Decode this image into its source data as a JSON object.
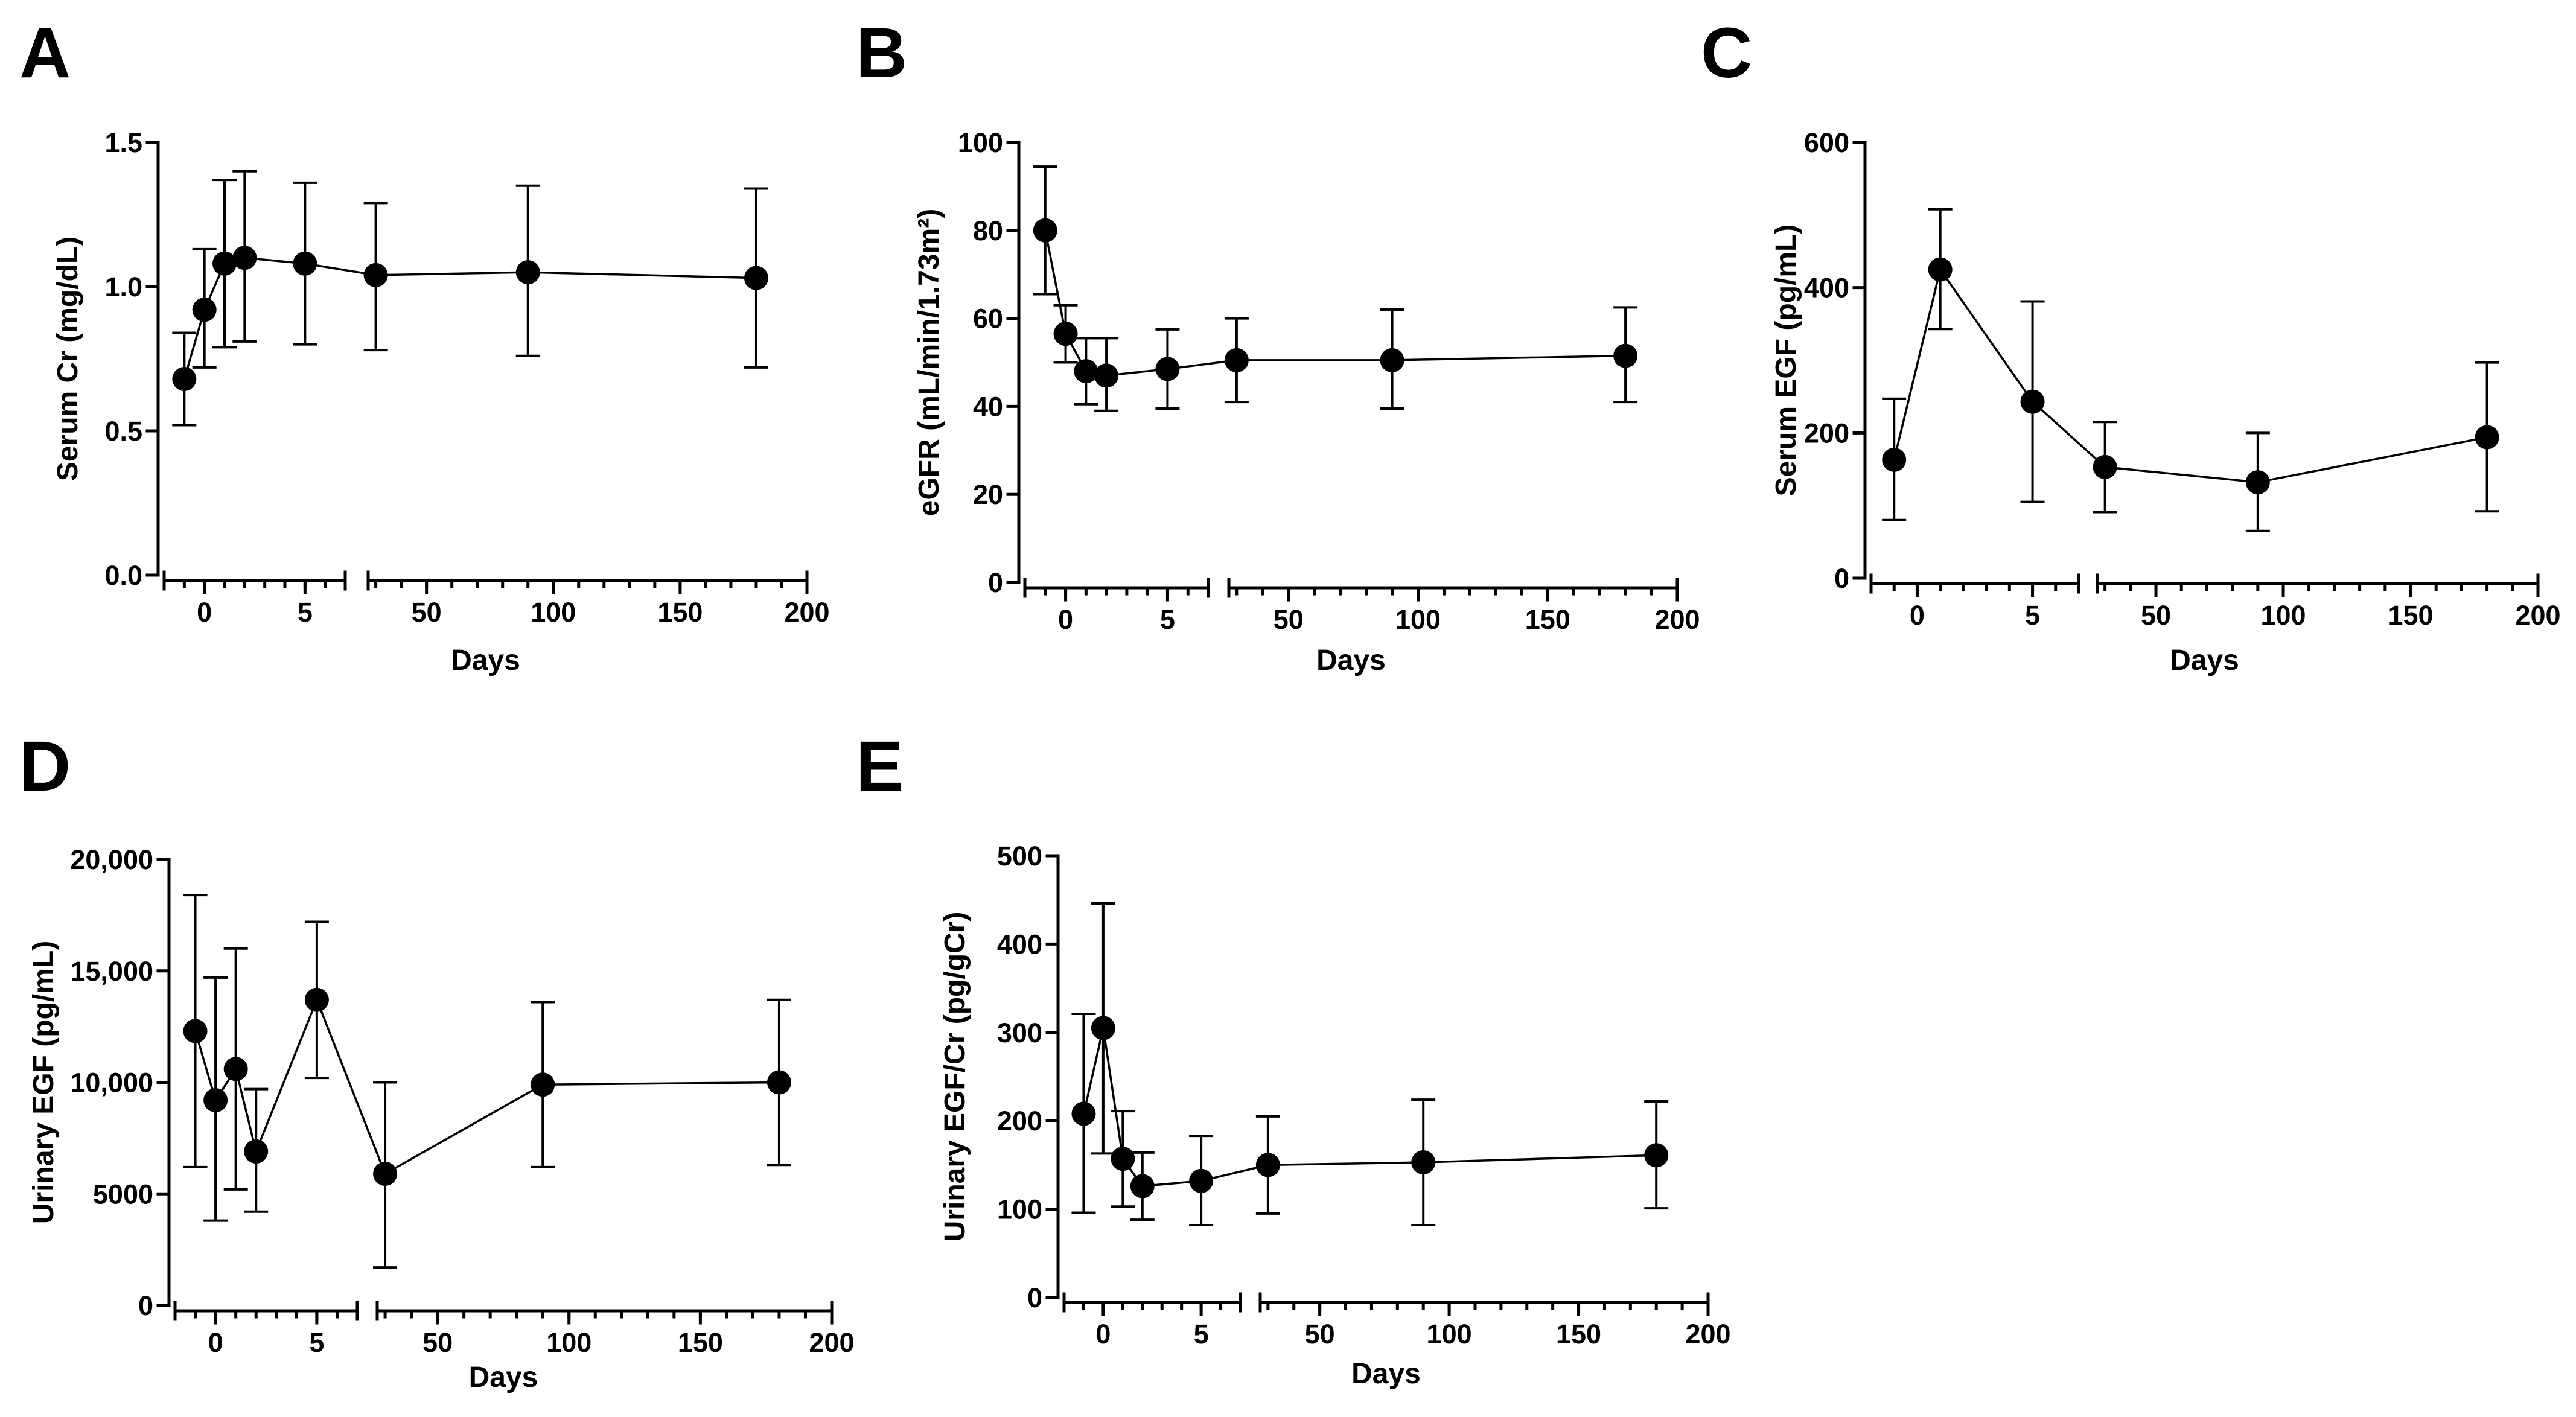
{
  "chart_data": [
    {
      "panel": "A",
      "type": "line",
      "xlabel": "Days",
      "ylabel": "Serum Cr (mg/dL)",
      "ylim": [
        0,
        1.5
      ],
      "yticks": [
        0,
        0.5,
        1.0,
        1.5
      ],
      "ytick_labels": [
        "0.0",
        "0.5",
        "1.0",
        "1.5"
      ],
      "x_segments": [
        {
          "range": [
            -2,
            7
          ],
          "ticks": [
            0,
            5
          ],
          "tick_labels": [
            "0",
            "5"
          ]
        },
        {
          "range": [
            27,
            200
          ],
          "ticks": [
            50,
            100,
            150,
            200
          ],
          "tick_labels": [
            "50",
            "100",
            "150",
            "200"
          ]
        }
      ],
      "points": [
        {
          "x": -1,
          "y": 0.68,
          "lo": 0.52,
          "hi": 0.84
        },
        {
          "x": 0,
          "y": 0.92,
          "lo": 0.72,
          "hi": 1.13
        },
        {
          "x": 1,
          "y": 1.08,
          "lo": 0.79,
          "hi": 1.37
        },
        {
          "x": 2,
          "y": 1.1,
          "lo": 0.81,
          "hi": 1.4
        },
        {
          "x": 5,
          "y": 1.08,
          "lo": 0.8,
          "hi": 1.36
        },
        {
          "x": 30,
          "y": 1.04,
          "lo": 0.78,
          "hi": 1.29
        },
        {
          "x": 90,
          "y": 1.05,
          "lo": 0.76,
          "hi": 1.35
        },
        {
          "x": 180,
          "y": 1.03,
          "lo": 0.72,
          "hi": 1.34
        }
      ]
    },
    {
      "panel": "B",
      "type": "line",
      "xlabel": "Days",
      "ylabel": "eGFR (mL/min/1.73m²)",
      "ylim": [
        0,
        100
      ],
      "yticks": [
        0,
        20,
        40,
        60,
        80,
        100
      ],
      "ytick_labels": [
        "0",
        "20",
        "40",
        "60",
        "80",
        "100"
      ],
      "x_segments": [
        {
          "range": [
            -2,
            7
          ],
          "ticks": [
            0,
            5
          ],
          "tick_labels": [
            "0",
            "5"
          ]
        },
        {
          "range": [
            27,
            200
          ],
          "ticks": [
            50,
            100,
            150,
            200
          ],
          "tick_labels": [
            "50",
            "100",
            "150",
            "200"
          ]
        }
      ],
      "points": [
        {
          "x": -1,
          "y": 80,
          "lo": 65.5,
          "hi": 94.5
        },
        {
          "x": 0,
          "y": 56.5,
          "lo": 50,
          "hi": 63
        },
        {
          "x": 1,
          "y": 48,
          "lo": 40.5,
          "hi": 55.5
        },
        {
          "x": 2,
          "y": 47,
          "lo": 39,
          "hi": 55.5
        },
        {
          "x": 5,
          "y": 48.5,
          "lo": 39.5,
          "hi": 57.5
        },
        {
          "x": 30,
          "y": 50.5,
          "lo": 41,
          "hi": 60
        },
        {
          "x": 90,
          "y": 50.5,
          "lo": 39.5,
          "hi": 62
        },
        {
          "x": 180,
          "y": 51.5,
          "lo": 41,
          "hi": 62.5
        }
      ]
    },
    {
      "panel": "C",
      "type": "line",
      "xlabel": "Days",
      "ylabel": "Serum EGF (pg/mL)",
      "ylim": [
        0,
        600
      ],
      "yticks": [
        0,
        200,
        400,
        600
      ],
      "ytick_labels": [
        "0",
        "200",
        "400",
        "600"
      ],
      "x_segments": [
        {
          "range": [
            -2,
            7
          ],
          "ticks": [
            0,
            5
          ],
          "tick_labels": [
            "0",
            "5"
          ]
        },
        {
          "range": [
            27,
            200
          ],
          "ticks": [
            50,
            100,
            150,
            200
          ],
          "tick_labels": [
            "50",
            "100",
            "150",
            "200"
          ]
        }
      ],
      "points": [
        {
          "x": -1,
          "y": 163,
          "lo": 80,
          "hi": 247
        },
        {
          "x": 1,
          "y": 425,
          "lo": 343,
          "hi": 508
        },
        {
          "x": 5,
          "y": 243,
          "lo": 105,
          "hi": 381
        },
        {
          "x": 30,
          "y": 153,
          "lo": 91,
          "hi": 215
        },
        {
          "x": 90,
          "y": 132,
          "lo": 65,
          "hi": 200
        },
        {
          "x": 180,
          "y": 194,
          "lo": 92,
          "hi": 297
        }
      ]
    },
    {
      "panel": "D",
      "type": "line",
      "xlabel": "Days",
      "ylabel": "Urinary EGF (pg/mL)",
      "ylim": [
        0,
        20000
      ],
      "yticks": [
        0,
        5000,
        10000,
        15000,
        20000
      ],
      "ytick_labels": [
        "0",
        "5000",
        "10,000",
        "15,000",
        "20,000"
      ],
      "x_segments": [
        {
          "range": [
            -2,
            7
          ],
          "ticks": [
            0,
            5
          ],
          "tick_labels": [
            "0",
            "5"
          ]
        },
        {
          "range": [
            27,
            200
          ],
          "ticks": [
            50,
            100,
            150,
            200
          ],
          "tick_labels": [
            "50",
            "100",
            "150",
            "200"
          ]
        }
      ],
      "points": [
        {
          "x": -1,
          "y": 12300,
          "lo": 6200,
          "hi": 18400
        },
        {
          "x": 0,
          "y": 9200,
          "lo": 3800,
          "hi": 14700
        },
        {
          "x": 1,
          "y": 10600,
          "lo": 5200,
          "hi": 16000
        },
        {
          "x": 2,
          "y": 6900,
          "lo": 4200,
          "hi": 9700
        },
        {
          "x": 5,
          "y": 13700,
          "lo": 10200,
          "hi": 17200
        },
        {
          "x": 30,
          "y": 5900,
          "lo": 1700,
          "hi": 10000
        },
        {
          "x": 90,
          "y": 9900,
          "lo": 6200,
          "hi": 13600
        },
        {
          "x": 180,
          "y": 10000,
          "lo": 6300,
          "hi": 13700
        }
      ]
    },
    {
      "panel": "E",
      "type": "line",
      "xlabel": "Days",
      "ylabel": "Urinary EGF/Cr (pg/gCr)",
      "ylim": [
        0,
        500
      ],
      "yticks": [
        0,
        100,
        200,
        300,
        400,
        500
      ],
      "ytick_labels": [
        "0",
        "100",
        "200",
        "300",
        "400",
        "500"
      ],
      "x_segments": [
        {
          "range": [
            -2,
            7
          ],
          "ticks": [
            0,
            5
          ],
          "tick_labels": [
            "0",
            "5"
          ]
        },
        {
          "range": [
            27,
            200
          ],
          "ticks": [
            50,
            100,
            150,
            200
          ],
          "tick_labels": [
            "50",
            "100",
            "150",
            "200"
          ]
        }
      ],
      "points": [
        {
          "x": -1,
          "y": 208,
          "lo": 96,
          "hi": 321
        },
        {
          "x": 0,
          "y": 305,
          "lo": 163,
          "hi": 446
        },
        {
          "x": 1,
          "y": 157,
          "lo": 103,
          "hi": 211
        },
        {
          "x": 2,
          "y": 126,
          "lo": 88,
          "hi": 164
        },
        {
          "x": 5,
          "y": 132,
          "lo": 82,
          "hi": 183
        },
        {
          "x": 30,
          "y": 150,
          "lo": 95,
          "hi": 205
        },
        {
          "x": 90,
          "y": 153,
          "lo": 82,
          "hi": 224
        },
        {
          "x": 180,
          "y": 161,
          "lo": 101,
          "hi": 222
        }
      ]
    }
  ]
}
